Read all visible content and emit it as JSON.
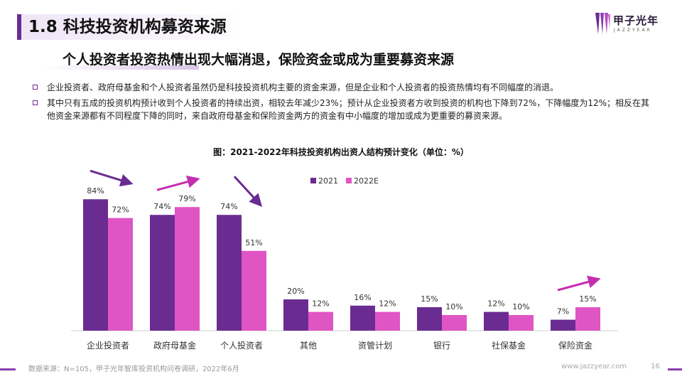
{
  "header": {
    "title": "1.8 科技投资机构募资来源",
    "subtitle": "个人投资者投资热情出现大幅消退，保险资金或成为重要募资来源"
  },
  "logo": {
    "name": "甲子光年",
    "tagline": "JAZZYEAR"
  },
  "bullets": [
    "企业投资者、政府母基金和个人投资者虽然仍是科技投资机构主要的资金来源，但是企业和个人投资者的投资热情均有不同幅度的消退。",
    "其中只有五成的投资机构预计收到个人投资者的持续出资，相较去年减少23%；预计从企业投资者方收到投资的机构也下降到72%，下降幅度为12%；相反在其他资金来源都有不同程度下降的同时，来自政府母基金和保险资金两方的资金有中小幅度的增加或成为更重要的募资来源。"
  ],
  "chart_data": {
    "type": "bar",
    "title": "图：2021-2022年科技投资机构出资人结构预计变化（单位：%）",
    "categories": [
      "企业投资者",
      "政府母基金",
      "个人投资者",
      "其他",
      "资管计划",
      "银行",
      "社保基金",
      "保险资金"
    ],
    "series": [
      {
        "name": "2021",
        "values": [
          84,
          74,
          74,
          20,
          16,
          15,
          12,
          7
        ],
        "color": "#6a2c91"
      },
      {
        "name": "2022E",
        "values": [
          72,
          79,
          51,
          12,
          12,
          10,
          10,
          15
        ],
        "color": "#e055c4"
      }
    ],
    "value_labels": [
      [
        "84%",
        "74%",
        "74%",
        "20%",
        "16%",
        "15%",
        "12%",
        "7%"
      ],
      [
        "72%",
        "79%",
        "51%",
        "12%",
        "12%",
        "10%",
        "10%",
        "15%"
      ]
    ],
    "ylim": [
      0,
      100
    ],
    "legend": "top-center",
    "trend_arrows": [
      {
        "category": "企业投资者",
        "direction": "down",
        "color": "#6a2c91"
      },
      {
        "category": "政府母基金",
        "direction": "up",
        "color": "#c42fb0"
      },
      {
        "category": "个人投资者",
        "direction": "down",
        "color": "#6a2c91"
      },
      {
        "category": "保险资金",
        "direction": "up",
        "color": "#c42fb0"
      }
    ]
  },
  "footer": {
    "source": "数据来源：N=105，甲子光年智库投资机构问卷调研，2022年6月",
    "website": "www.jazzyear.com",
    "page": "16"
  },
  "colors": {
    "accent": "#6a2c91",
    "secondary": "#e055c4"
  }
}
